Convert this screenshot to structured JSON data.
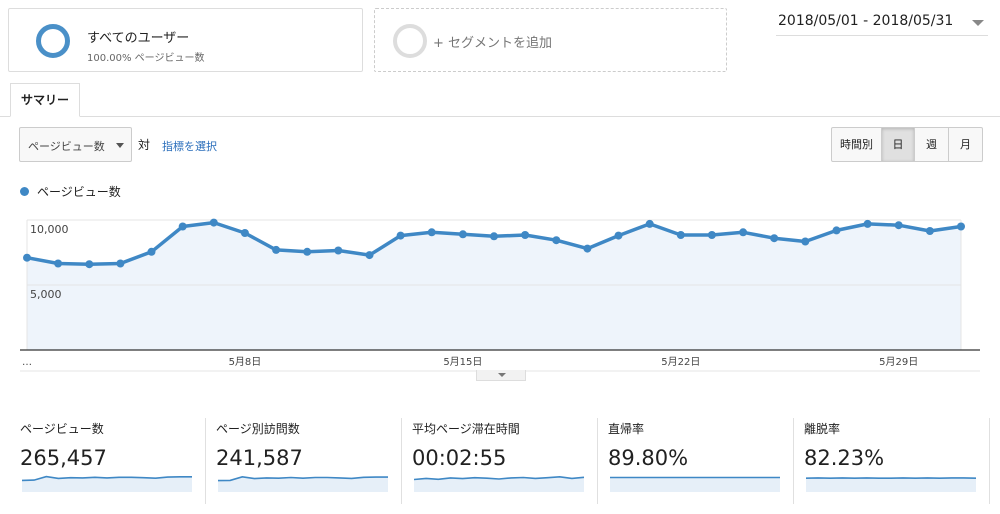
{
  "segments": {
    "active": {
      "title": "すべてのユーザー",
      "subtitle": "100.00% ページビュー数"
    },
    "add_label": "+ セグメントを追加"
  },
  "date_range": "2018/05/01 - 2018/05/31",
  "tabs": [
    {
      "label": "サマリー",
      "active": true
    }
  ],
  "controls": {
    "metric_select": "ページビュー数",
    "vs_label": "対",
    "choose_metric": "指標を選択",
    "intervals": [
      {
        "label": "時間別",
        "active": false
      },
      {
        "label": "日",
        "active": true
      },
      {
        "label": "週",
        "active": false
      },
      {
        "label": "月",
        "active": false
      }
    ]
  },
  "colors": {
    "accent": "#3f88c5",
    "area_fill": "#eef4fb",
    "link": "#2a6ebb"
  },
  "chart_data": {
    "type": "area",
    "series": [
      {
        "name": "ページビュー数",
        "values": [
          7100,
          6650,
          6600,
          6650,
          7550,
          9500,
          9800,
          9000,
          7700,
          7550,
          7650,
          7300,
          8800,
          9050,
          8900,
          8750,
          8850,
          8450,
          7800,
          8800,
          9700,
          8850,
          8850,
          9050,
          8600,
          8350,
          9200,
          9700,
          9600,
          9150,
          9500
        ]
      }
    ],
    "x_tick_labels": [
      "…",
      "5月8日",
      "5月15日",
      "5月22日",
      "5月29日"
    ],
    "x_tick_days": [
      1,
      8,
      15,
      22,
      29
    ],
    "y_ticks": [
      {
        "value": 10000,
        "label": "10,000"
      },
      {
        "value": 5000,
        "label": "5,000"
      }
    ],
    "ylim": [
      0,
      10000
    ],
    "grid": true
  },
  "scorecards": [
    {
      "label": "ページビュー数",
      "value": "265,457",
      "spark": [
        6.2,
        6.3,
        7.9,
        7.1,
        7.4,
        7.3,
        7.6,
        7.3,
        7.6,
        7.6,
        7.4,
        7.2,
        7.7,
        7.8,
        7.8
      ]
    },
    {
      "label": "ページ別訪問数",
      "value": "241,587",
      "spark": [
        6.1,
        6.2,
        7.8,
        7.0,
        7.3,
        7.2,
        7.5,
        7.2,
        7.5,
        7.5,
        7.3,
        7.1,
        7.6,
        7.7,
        7.7
      ]
    },
    {
      "label": "平均ページ滞在時間",
      "value": "00:02:55",
      "spark": [
        6.6,
        7.1,
        6.7,
        7.3,
        7.0,
        7.4,
        7.2,
        6.8,
        7.3,
        7.5,
        7.1,
        7.4,
        7.8,
        7.1,
        7.6
      ]
    },
    {
      "label": "直帰率",
      "value": "89.80%",
      "spark": [
        7.5,
        7.5,
        7.5,
        7.5,
        7.5,
        7.5,
        7.5,
        7.5,
        7.5,
        7.5,
        7.5,
        7.5,
        7.5,
        7.5,
        7.5
      ]
    },
    {
      "label": "離脱率",
      "value": "82.23%",
      "spark": [
        7.2,
        7.3,
        7.2,
        7.3,
        7.2,
        7.3,
        7.2,
        7.2,
        7.3,
        7.2,
        7.3,
        7.2,
        7.3,
        7.3,
        7.2
      ]
    }
  ]
}
